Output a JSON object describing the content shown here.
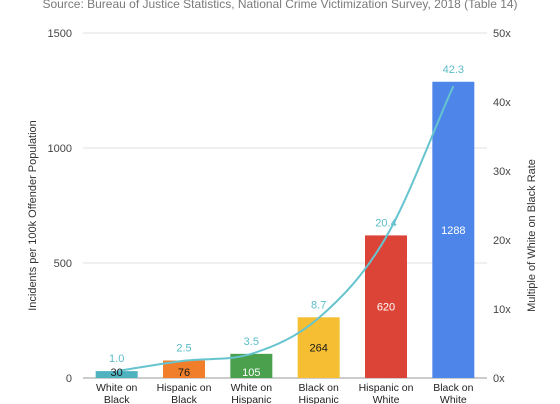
{
  "chart_data": {
    "type": "bar",
    "subtitle": "Source: Bureau of Justice Statistics, National Crime Victimization Survey, 2018 (Table 14)",
    "ylabel_left": "Incidents per 100k Offender Population",
    "ylabel_right": "Multiple of White on Black Rate",
    "ylim_left": [
      0,
      1500
    ],
    "ylim_right": [
      0,
      50
    ],
    "left_ticks": [
      "0",
      "500",
      "1000",
      "1500"
    ],
    "right_ticks": [
      "0x",
      "10x",
      "20x",
      "30x",
      "40x",
      "50x"
    ],
    "categories": [
      [
        "White on",
        "Black"
      ],
      [
        "Hispanic on",
        "Black"
      ],
      [
        "White on",
        "Hispanic"
      ],
      [
        "Black on",
        "Hispanic"
      ],
      [
        "Hispanic on",
        "White"
      ],
      [
        "Black on",
        "White"
      ]
    ],
    "series": [
      {
        "values": [
          30,
          76,
          105,
          264,
          620,
          1288
        ],
        "labels": [
          "30",
          "76",
          "105",
          "264",
          "620",
          "1288"
        ],
        "colors": [
          "#4fb3bf",
          "#f07e2b",
          "#4aa04c",
          "#f5be33",
          "#db4437",
          "#4d86e8"
        ],
        "label_colors": [
          "#1a1a1a",
          "#1a1a1a",
          "#ffffff",
          "#1a1a1a",
          "#ffffff",
          "#ffffff"
        ]
      },
      {
        "values": [
          1.0,
          2.5,
          3.5,
          8.7,
          20.4,
          42.3
        ],
        "labels": [
          "1.0",
          "2.5",
          "3.5",
          "8.7",
          "20.4",
          "42.3"
        ],
        "color": "#66c4cf",
        "axis": "right",
        "type": "smooth-line"
      }
    ],
    "grid": true,
    "legend": "none"
  }
}
